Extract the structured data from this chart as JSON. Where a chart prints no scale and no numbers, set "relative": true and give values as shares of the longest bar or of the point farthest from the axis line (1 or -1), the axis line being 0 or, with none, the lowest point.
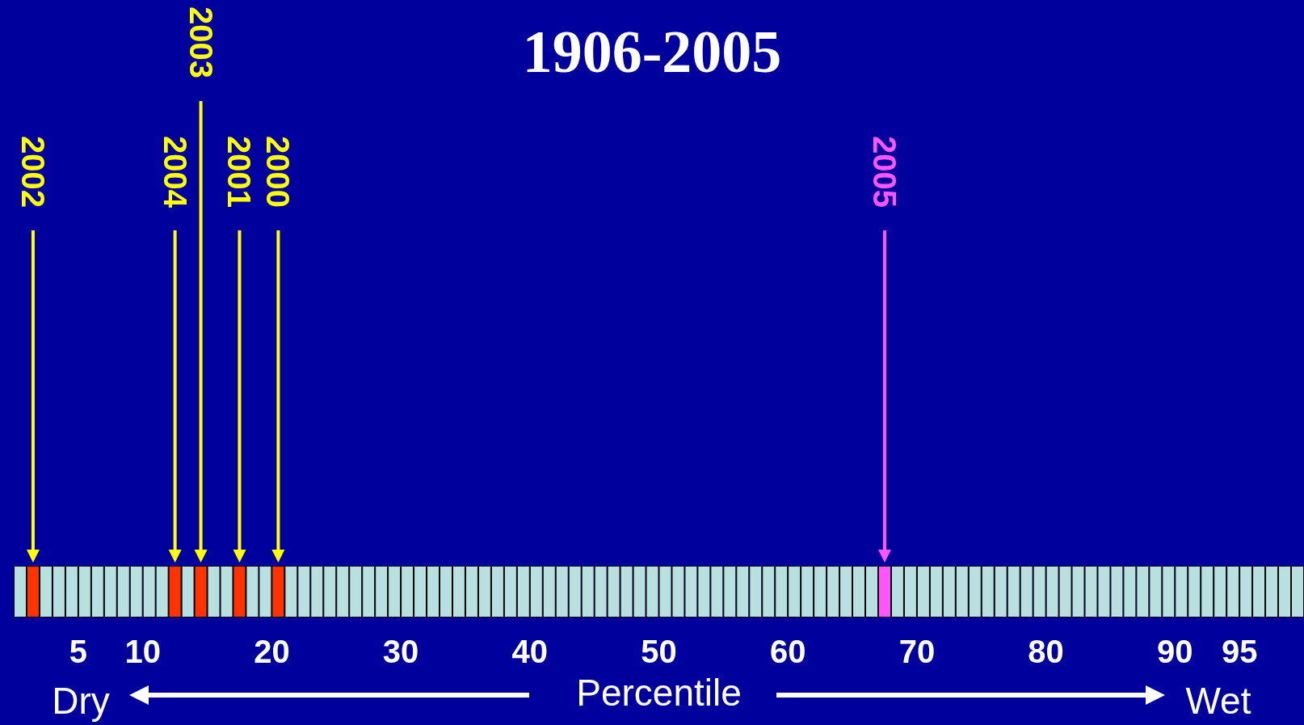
{
  "chart_data": {
    "type": "bar",
    "title": "1906-2005",
    "xlabel": "Percentile",
    "relative": true,
    "x": [
      0.5,
      1.5,
      2.5,
      3.5,
      4.5,
      5.5,
      6.5,
      7.5,
      8.5,
      9.5,
      10.5,
      11.5,
      12.5,
      13.5,
      14.5,
      15.5,
      16.5,
      17.5,
      18.5,
      19.5,
      20.5,
      21.5,
      22.5,
      23.5,
      24.5,
      25.5,
      26.5,
      27.5,
      28.5,
      29.5,
      30.5,
      31.5,
      32.5,
      33.5,
      34.5,
      35.5,
      36.5,
      37.5,
      38.5,
      39.5,
      40.5,
      41.5,
      42.5,
      43.5,
      44.5,
      45.5,
      46.5,
      47.5,
      48.5,
      49.5,
      50.5,
      51.5,
      52.5,
      53.5,
      54.5,
      55.5,
      56.5,
      57.5,
      58.5,
      59.5,
      60.5,
      61.5,
      62.5,
      63.5,
      64.5,
      65.5,
      66.5,
      67.5,
      68.5,
      69.5,
      70.5,
      71.5,
      72.5,
      73.5,
      74.5,
      75.5,
      76.5,
      77.5,
      78.5,
      79.5,
      80.5,
      81.5,
      82.5,
      83.5,
      84.5,
      85.5,
      86.5,
      87.5,
      88.5,
      89.5,
      90.5,
      91.5,
      92.5,
      93.5,
      94.5,
      95.5,
      96.5,
      97.5,
      98.5,
      99.5
    ],
    "values": [
      1,
      1,
      1,
      1,
      1,
      1,
      1,
      1,
      1,
      1,
      1,
      1,
      1,
      1,
      1,
      1,
      1,
      1,
      1,
      1,
      1,
      1,
      1,
      1,
      1,
      1,
      1,
      1,
      1,
      1,
      1,
      1,
      1,
      1,
      1,
      1,
      1,
      1,
      1,
      1,
      1,
      1,
      1,
      1,
      1,
      1,
      1,
      1,
      1,
      1,
      1,
      1,
      1,
      1,
      1,
      1,
      1,
      1,
      1,
      1,
      1,
      1,
      1,
      1,
      1,
      1,
      1,
      1,
      1,
      1,
      1,
      1,
      1,
      1,
      1,
      1,
      1,
      1,
      1,
      1,
      1,
      1,
      1,
      1,
      1,
      1,
      1,
      1,
      1,
      1,
      1,
      1,
      1,
      1,
      1,
      1,
      1,
      1,
      1,
      1
    ],
    "colors": [
      "#b9e0e0",
      "#ff3300",
      "#b9e0e0",
      "#b9e0e0",
      "#b9e0e0",
      "#b9e0e0",
      "#b9e0e0",
      "#b9e0e0",
      "#b9e0e0",
      "#b9e0e0",
      "#b9e0e0",
      "#b9e0e0",
      "#ff3300",
      "#b9e0e0",
      "#ff3300",
      "#b9e0e0",
      "#b9e0e0",
      "#ff3300",
      "#b9e0e0",
      "#b9e0e0",
      "#ff3300",
      "#b9e0e0",
      "#b9e0e0",
      "#b9e0e0",
      "#b9e0e0",
      "#b9e0e0",
      "#b9e0e0",
      "#b9e0e0",
      "#b9e0e0",
      "#b9e0e0",
      "#b9e0e0",
      "#b9e0e0",
      "#b9e0e0",
      "#b9e0e0",
      "#b9e0e0",
      "#b9e0e0",
      "#b9e0e0",
      "#b9e0e0",
      "#b9e0e0",
      "#b9e0e0",
      "#b9e0e0",
      "#b9e0e0",
      "#b9e0e0",
      "#b9e0e0",
      "#b9e0e0",
      "#b9e0e0",
      "#b9e0e0",
      "#b9e0e0",
      "#b9e0e0",
      "#b9e0e0",
      "#b9e0e0",
      "#b9e0e0",
      "#b9e0e0",
      "#b9e0e0",
      "#b9e0e0",
      "#b9e0e0",
      "#b9e0e0",
      "#b9e0e0",
      "#b9e0e0",
      "#b9e0e0",
      "#b9e0e0",
      "#b9e0e0",
      "#b9e0e0",
      "#b9e0e0",
      "#b9e0e0",
      "#b9e0e0",
      "#b9e0e0",
      "#ff55ff",
      "#b9e0e0",
      "#b9e0e0",
      "#b9e0e0",
      "#b9e0e0",
      "#b9e0e0",
      "#b9e0e0",
      "#b9e0e0",
      "#b9e0e0",
      "#b9e0e0",
      "#b9e0e0",
      "#b9e0e0",
      "#b9e0e0",
      "#b9e0e0",
      "#b9e0e0",
      "#b9e0e0",
      "#b9e0e0",
      "#b9e0e0",
      "#b9e0e0",
      "#b9e0e0",
      "#b9e0e0",
      "#b9e0e0",
      "#b9e0e0",
      "#b9e0e0",
      "#b9e0e0",
      "#b9e0e0",
      "#b9e0e0",
      "#b9e0e0",
      "#b9e0e0",
      "#b9e0e0",
      "#b9e0e0",
      "#b9e0e0",
      "#b9e0e0"
    ],
    "xlim": [
      0,
      100
    ],
    "xticks": [
      5,
      10,
      20,
      30,
      40,
      50,
      60,
      70,
      80,
      90,
      95
    ],
    "annotations": [
      "2002",
      "2004",
      "2003",
      "2001",
      "2000",
      "2005",
      "Dry",
      "Wet"
    ]
  }
}
